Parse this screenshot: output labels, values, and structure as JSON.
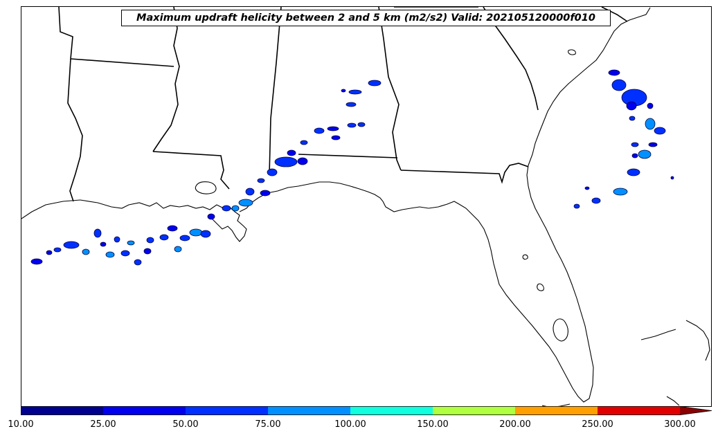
{
  "title": "Maximum updraft helicity between 2 and 5 km (m2/s2) Valid: 202105120000f010",
  "colorbar": {
    "ticks": [
      "10.00",
      "25.00",
      "50.00",
      "75.00",
      "100.00",
      "150.00",
      "200.00",
      "250.00",
      "300.00"
    ],
    "colors": [
      "#00008f",
      "#0000ee",
      "#0030ff",
      "#0090ff",
      "#10ffe0",
      "#b0ff40",
      "#ffa000",
      "#e00000",
      "#8b0000"
    ],
    "extend": "max"
  },
  "map": {
    "region": "Southeastern United States and Gulf of Mexico",
    "projection": "lambert-conformal",
    "land_color": "#ffffff",
    "ocean_color": "#ffffff",
    "line_color": "#000000"
  }
}
